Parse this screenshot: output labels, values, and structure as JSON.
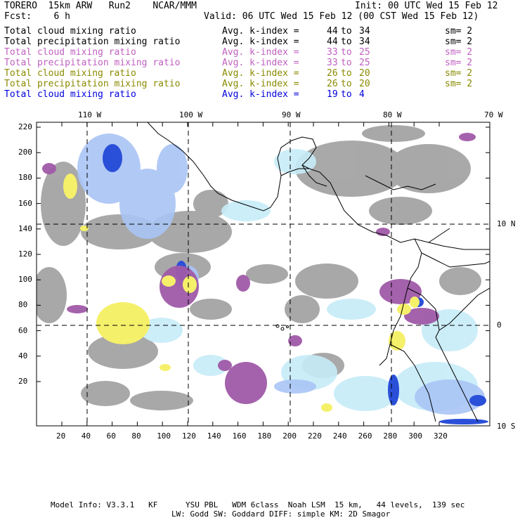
{
  "header": {
    "model": "TORERO  15km ARW   Run2    NCAR/MMM",
    "init": "Init: 00 UTC Wed 15 Feb 12",
    "fcst": "Fcst:    6 h",
    "valid": "Valid: 06 UTC Wed 15 Feb 12 (00 CST Wed 15 Feb 12)"
  },
  "legend": [
    {
      "field": "Total cloud mixing ratio",
      "kidx": "Avg. k-index =",
      "from": "44",
      "to": "to",
      "end": "34",
      "sm": "sm= 2",
      "color": "#000000"
    },
    {
      "field": "Total precipitation mixing ratio",
      "kidx": "Avg. k-index =",
      "from": "44",
      "to": "to",
      "end": "34",
      "sm": "sm= 2",
      "color": "#000000"
    },
    {
      "field": "Total cloud mixing ratio",
      "kidx": "Avg. k-index =",
      "from": "33",
      "to": "to",
      "end": "25",
      "sm": "sm= 2",
      "color": "#c060c0"
    },
    {
      "field": "Total precipitation mixing ratio",
      "kidx": "Avg. k-index =",
      "from": "33",
      "to": "to",
      "end": "25",
      "sm": "sm= 2",
      "color": "#c060c0"
    },
    {
      "field": "Total cloud mixing ratio",
      "kidx": "Avg. k-index =",
      "from": "26",
      "to": "to",
      "end": "20",
      "sm": "sm= 2",
      "color": "#8a8a00"
    },
    {
      "field": "Total precipitation mixing ratio",
      "kidx": "Avg. k-index =",
      "from": "26",
      "to": "to",
      "end": "20",
      "sm": "sm= 2",
      "color": "#8a8a00"
    },
    {
      "field": "Total cloud mixing ratio",
      "kidx": "Avg. k-index =",
      "from": "19",
      "to": "to",
      "end": "4",
      "sm": "",
      "color": "#0000dd"
    }
  ],
  "map": {
    "lon_labels": [
      "110 W",
      "100 W",
      "90 W",
      "80 W",
      "70 W"
    ],
    "lat_labels": [
      "10 N",
      "0",
      "10 S"
    ],
    "y_ticks": [
      "220",
      "200",
      "180",
      "160",
      "140",
      "120",
      "100",
      "80",
      "60",
      "40",
      "20"
    ],
    "x_ticks": [
      "20",
      "40",
      "60",
      "80",
      "100",
      "120",
      "140",
      "160",
      "180",
      "200",
      "220",
      "240",
      "260",
      "280",
      "300",
      "320"
    ]
  },
  "footer": {
    "line1": "Model Info: V3.3.1   KF      YSU PBL   WDM 6class  Noah LSM  15 km,   44 levels,  139 sec",
    "line2": "LW: Godd SW: Goddard DIFF: simple KM: 2D Smagor"
  },
  "colors": {
    "gray": "#9a9a9a",
    "lightblue": "#c6ecf8",
    "periwinkle": "#a9c4f5",
    "blue": "#2a4fd8",
    "darkblue": "#0a18c8",
    "purple": "#a05aa8",
    "yellow": "#f5f06a",
    "frame": "#000000"
  }
}
